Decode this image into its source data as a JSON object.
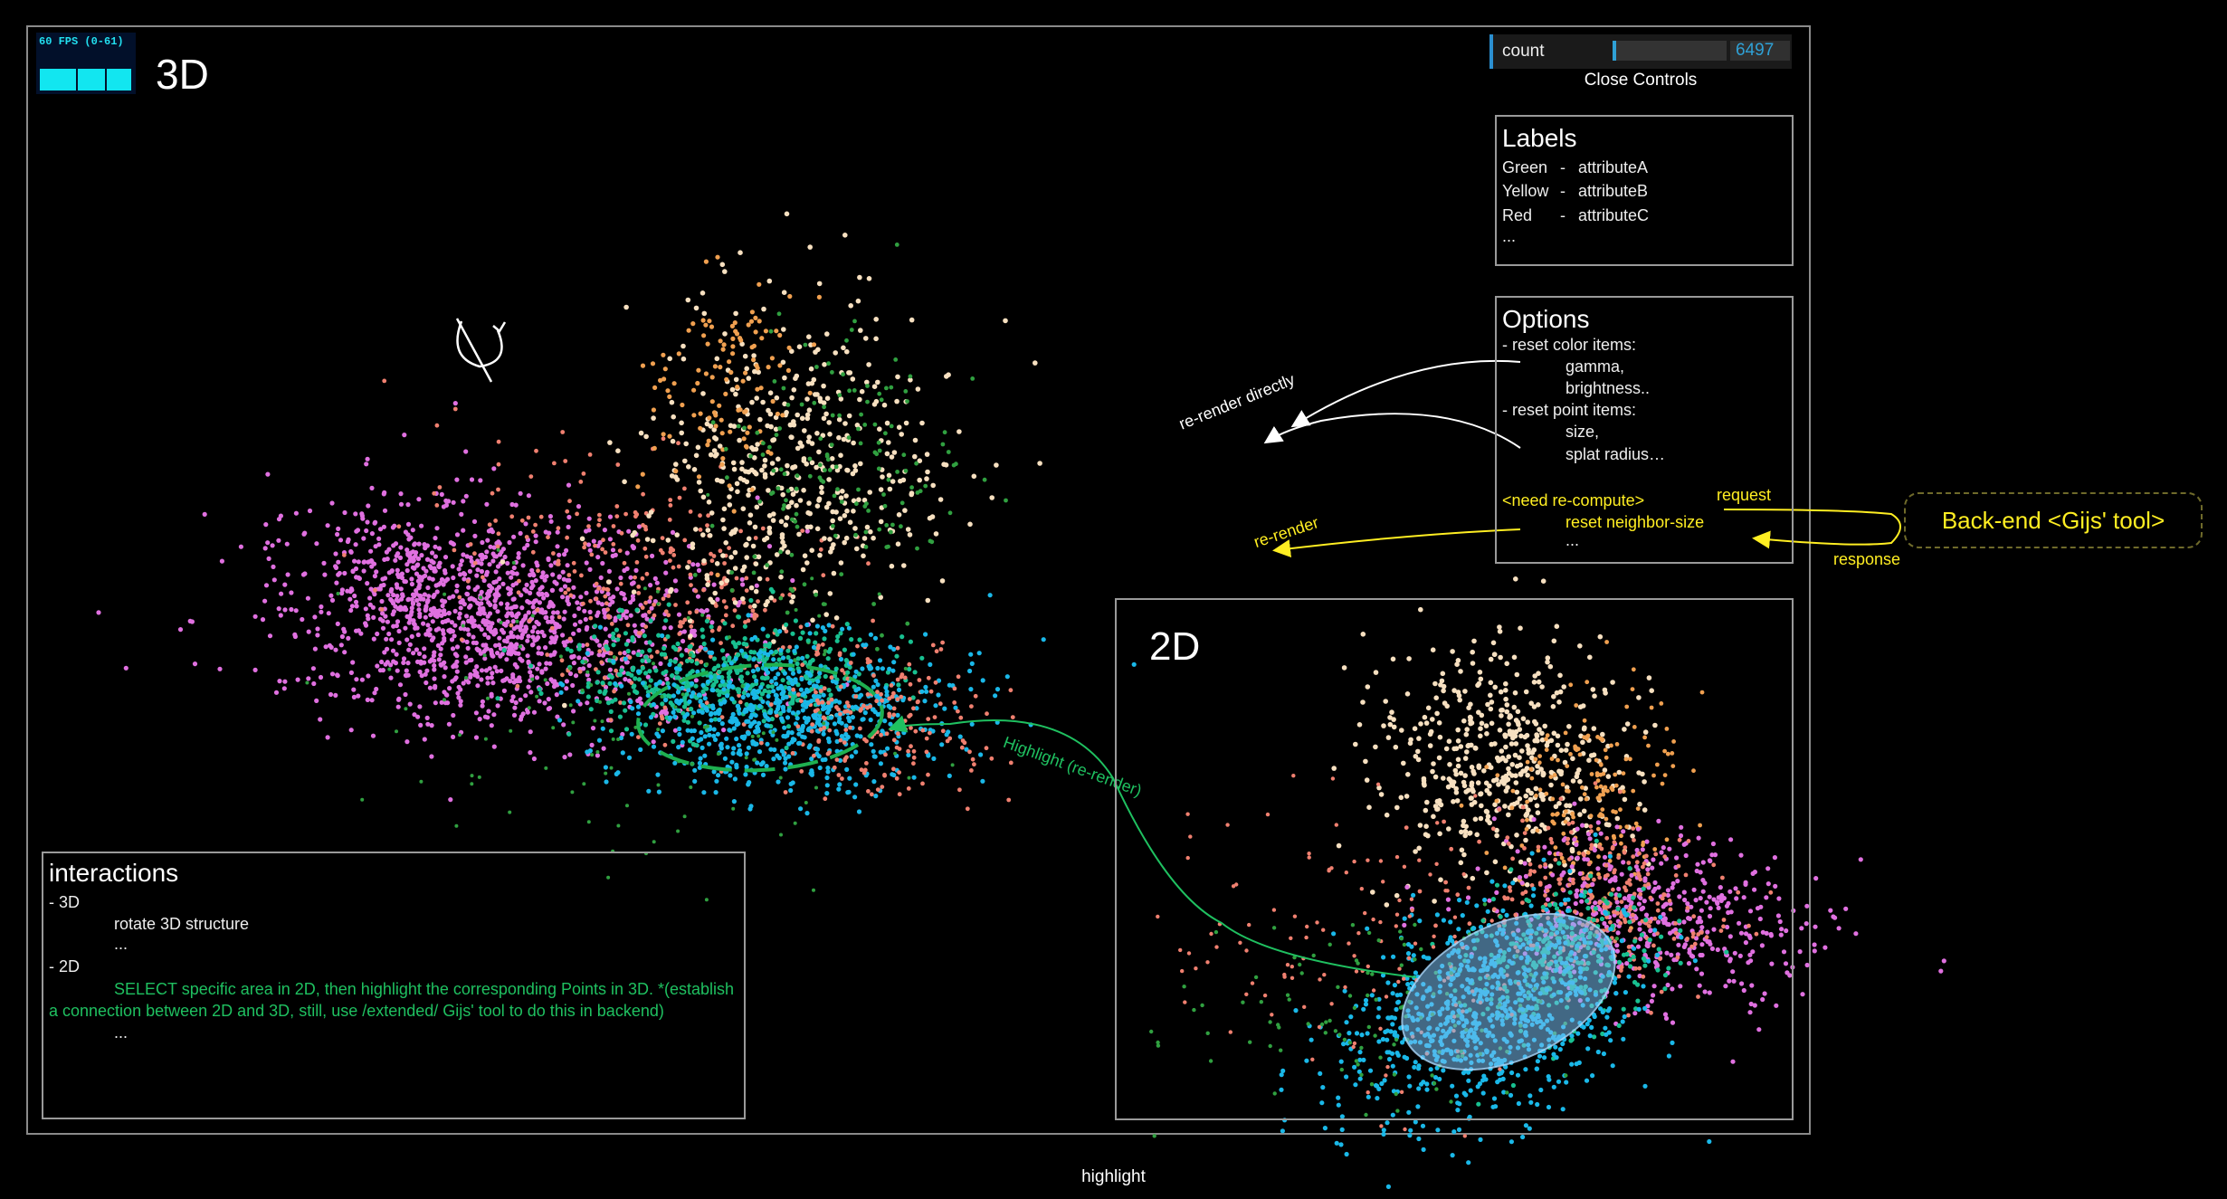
{
  "fps": {
    "text": "60 FPS (0-61)"
  },
  "view3d": {
    "title": "3D"
  },
  "view2d": {
    "title": "2D"
  },
  "controls": {
    "label": "count",
    "value": "6497",
    "close_label": "Close Controls",
    "slider_fraction": 0.03
  },
  "labels_panel": {
    "title": "Labels",
    "rows": [
      {
        "color": "Green",
        "sep": "-",
        "attr": "attributeA"
      },
      {
        "color": "Yellow",
        "sep": "-",
        "attr": "attributeB"
      },
      {
        "color": "Red",
        "sep": "-",
        "attr": "attributeC"
      }
    ],
    "more": "..."
  },
  "options_panel": {
    "title": "Options",
    "reset_color": "- reset color items:",
    "gamma": "gamma,",
    "brightness": "brightness..",
    "reset_point": "- reset point items:",
    "size": "size,",
    "splat": "splat radius…",
    "need_recompute": "<need re-compute>",
    "reset_neighbor": "reset neighbor-size",
    "more": "..."
  },
  "annotations": {
    "rerender_directly": "re-render directly",
    "rerender": "re-render",
    "request": "request",
    "response": "response",
    "highlight": "Highlight (re-render)"
  },
  "backend": {
    "label": "Back-end <Gijs' tool>"
  },
  "interactions_panel": {
    "title": "interactions",
    "item_3d": "- 3D",
    "rotate": "rotate 3D structure",
    "ellipsis1": "...",
    "item_2d": "- 2D",
    "select_line1": "SELECT specific area in 2D, then highlight the corresponding Points in 3D. *(establish",
    "select_line2": "a connection between 2D and 3D, still, use /extended/ Gijs' tool to do this in backend)",
    "ellipsis2": "..."
  },
  "footer": {
    "caption": "highlight"
  },
  "colors": {
    "pink": "#e070e0",
    "cyan": "#1ab8e8",
    "teal": "#18c090",
    "cream": "#f7e0c0",
    "salmon": "#f08070",
    "orange": "#f0a050",
    "green": "#30a040",
    "note_green": "#1fc060",
    "note_yellow": "#ffee22",
    "control_blue": "#2fa1d6"
  }
}
